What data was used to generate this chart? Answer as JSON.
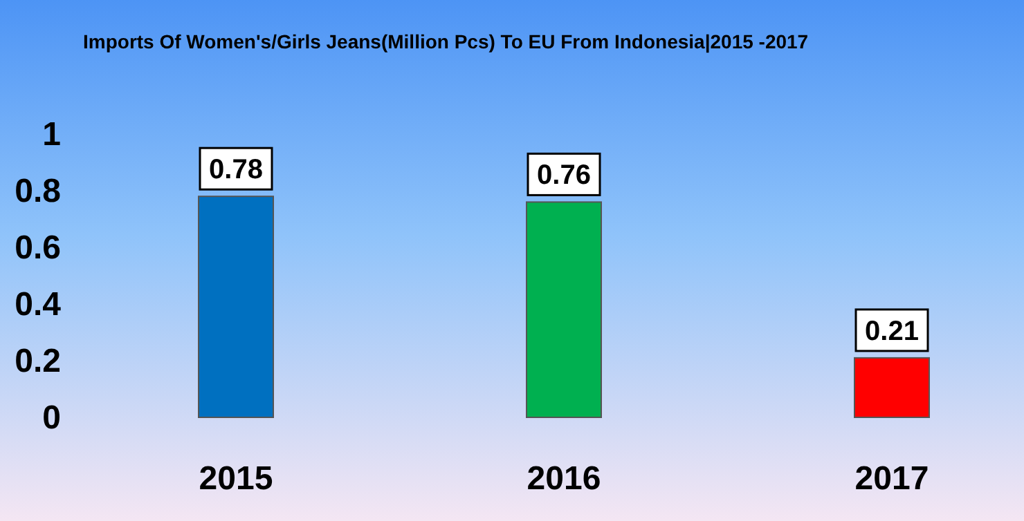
{
  "chart_data": {
    "type": "bar",
    "title": "Imports Of Women's/Girls Jeans(Million Pcs) To EU From Indonesia|2015 -2017",
    "categories": [
      "2015",
      "2016",
      "2017"
    ],
    "values": [
      0.78,
      0.76,
      0.21
    ],
    "colors": [
      "#0070c0",
      "#00b050",
      "#ff0000"
    ],
    "ylim": [
      0,
      1
    ],
    "yticks": [
      0,
      {
        "value": 0.2,
        "label": "0.2"
      },
      {
        "value": 0.4,
        "label": "0.4"
      },
      {
        "value": 0.6,
        "label": "0.6"
      },
      {
        "value": 0.8,
        "label": "0.8"
      },
      1
    ],
    "data_labels": true,
    "grid": false
  }
}
